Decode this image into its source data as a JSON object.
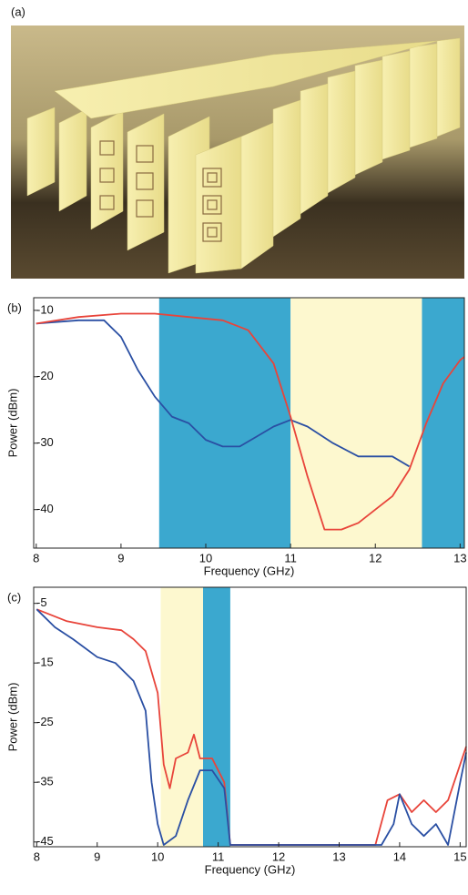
{
  "photo": {
    "label": "(a)"
  },
  "chart_data": [
    {
      "type": "line",
      "panel_label": "(b)",
      "xlabel": "Frequency (GHz)",
      "ylabel": "Power (dBm)",
      "xlim": [
        7.97,
        13.05
      ],
      "ylim": [
        -45.8,
        -8.1
      ],
      "xticks": [
        8,
        9,
        10,
        11,
        12,
        13
      ],
      "yticks": [
        -10,
        -20,
        -30,
        -40
      ],
      "bands": [
        {
          "x": [
            9.45,
            11
          ],
          "color": "#3ba8cf"
        },
        {
          "x": [
            11,
            12.55
          ],
          "color": "#fdf8cf"
        },
        {
          "x": [
            12.55,
            13.05
          ],
          "color": "#3ba8cf"
        }
      ],
      "series": [
        {
          "color": "#2a4fa3",
          "x": [
            8,
            8.5,
            8.8,
            9.0,
            9.2,
            9.4,
            9.6,
            9.8,
            10.0,
            10.2,
            10.4,
            10.6,
            10.8,
            11.0,
            11.2,
            11.5,
            11.8,
            12.0,
            12.2,
            12.4
          ],
          "values": [
            -12,
            -11.5,
            -11.5,
            -14,
            -19,
            -23,
            -26,
            -27,
            -29.5,
            -30.5,
            -30.5,
            -29,
            -27.5,
            -26.5,
            -27.5,
            -30,
            -32,
            -32,
            -32,
            -33.5
          ]
        },
        {
          "color": "#e8443a",
          "x": [
            8,
            8.5,
            9,
            9.4,
            9.8,
            10.2,
            10.5,
            10.8,
            11.0,
            11.2,
            11.4,
            11.6,
            11.8,
            12.0,
            12.2,
            12.4,
            12.6,
            12.8,
            13.0,
            13.05
          ],
          "values": [
            -12,
            -11,
            -10.5,
            -10.5,
            -11,
            -11.5,
            -13,
            -18,
            -26,
            -35,
            -43,
            -43,
            -42,
            -40,
            -38,
            -34,
            -27,
            -21,
            -17.5,
            -17
          ]
        }
      ]
    },
    {
      "type": "line",
      "panel_label": "(c)",
      "xlabel": "Frequency (GHz)",
      "ylabel": "Power (dBm)",
      "xlim": [
        7.95,
        15.1
      ],
      "ylim": [
        -45.8,
        -2.3
      ],
      "xticks": [
        8,
        9,
        10,
        11,
        12,
        13,
        14,
        15
      ],
      "yticks": [
        -5,
        -15,
        -25,
        -35,
        -45
      ],
      "bands": [
        {
          "x": [
            10.05,
            10.75
          ],
          "color": "#fdf8cf"
        },
        {
          "x": [
            10.75,
            11.2
          ],
          "color": "#3ba8cf"
        }
      ],
      "series": [
        {
          "color": "#e8443a",
          "x": [
            8,
            8.5,
            9,
            9.4,
            9.6,
            9.8,
            10.0,
            10.1,
            10.2,
            10.3,
            10.5,
            10.6,
            10.7,
            10.9,
            11.1,
            11.2,
            12.5,
            13.6,
            13.8,
            14.0,
            14.2,
            14.4,
            14.6,
            14.8,
            15.0,
            15.1
          ],
          "values": [
            -6,
            -8,
            -9,
            -9.5,
            -11,
            -13,
            -20,
            -32,
            -36,
            -31,
            -30,
            -27,
            -31,
            -31,
            -35,
            -45.5,
            -45.5,
            -45.5,
            -38,
            -37,
            -40,
            -38,
            -40,
            -38,
            -32,
            -29
          ]
        },
        {
          "color": "#2a4fa3",
          "x": [
            8,
            8.3,
            8.6,
            9.0,
            9.3,
            9.6,
            9.8,
            9.9,
            10.0,
            10.1,
            10.3,
            10.5,
            10.7,
            10.9,
            11.1,
            11.2,
            13.7,
            13.9,
            14.0,
            14.2,
            14.4,
            14.6,
            14.8,
            15.0,
            15.1
          ],
          "values": [
            -6,
            -9,
            -11,
            -14,
            -15,
            -18,
            -23,
            -35,
            -42,
            -45.5,
            -44,
            -38,
            -33,
            -33,
            -36,
            -45.5,
            -45.5,
            -42,
            -37,
            -42,
            -44,
            -42,
            -45.5,
            -35,
            -30
          ]
        }
      ]
    }
  ]
}
